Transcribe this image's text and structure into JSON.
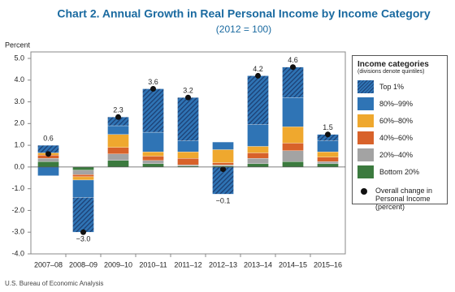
{
  "chart_data": {
    "type": "stacked-bar",
    "title": "Chart 2. Annual Growth in Real Personal Income by Income Category",
    "subtitle": "(2012 = 100)",
    "y_label": "Percent",
    "source": "U.S. Bureau of Economic Analysis",
    "legend_title": "Income categories",
    "legend_subtitle": "(divisions denote quintiles)",
    "categories": [
      "2007–08",
      "2008–09",
      "2009–10",
      "2010–11",
      "2011–12",
      "2012–13",
      "2013–14",
      "2014–15",
      "2015–16"
    ],
    "series": [
      {
        "name": "Bottom 20%",
        "color": "#3b7a3e",
        "values": [
          0.25,
          -0.15,
          0.3,
          0.15,
          0.05,
          0.05,
          0.15,
          0.25,
          0.15
        ]
      },
      {
        "name": "20%–40%",
        "color": "#a3a3a3",
        "values": [
          0.15,
          -0.2,
          0.3,
          0.15,
          0.05,
          0.05,
          0.25,
          0.5,
          0.1
        ]
      },
      {
        "name": "40%–60%",
        "color": "#d8622a",
        "values": [
          0.15,
          -0.1,
          0.3,
          0.2,
          0.3,
          0.1,
          0.25,
          0.35,
          0.2
        ]
      },
      {
        "name": "60%–80%",
        "color": "#efa82e",
        "values": [
          0.1,
          -0.15,
          0.6,
          0.2,
          0.3,
          0.6,
          0.3,
          0.75,
          0.25
        ]
      },
      {
        "name": "80%–99%",
        "color": "#2f74b5",
        "values": [
          -0.4,
          -0.8,
          0.4,
          0.9,
          0.5,
          0.35,
          1.0,
          1.35,
          0.5
        ]
      },
      {
        "name": "Top 1%",
        "color": "#2f74b5",
        "pattern": "hatch",
        "values": [
          0.35,
          -1.6,
          0.4,
          2.0,
          2.0,
          -1.25,
          2.25,
          1.4,
          0.3
        ]
      }
    ],
    "total": {
      "name": "Overall change in Personal Income (percent)",
      "color": "#111111",
      "values": [
        0.6,
        -3.0,
        2.3,
        3.6,
        3.2,
        -0.1,
        4.2,
        4.6,
        1.5
      ],
      "value_labels": [
        "0.6",
        "−3.0",
        "2.3",
        "3.6",
        "3.2",
        "−0.1",
        "4.2",
        "4.6",
        "1.5"
      ]
    },
    "ylim": [
      -4,
      5
    ],
    "yticks": [
      {
        "value": -4,
        "label": "-4.0"
      },
      {
        "value": -3,
        "label": "-3.0"
      },
      {
        "value": -2,
        "label": "-2.0"
      },
      {
        "value": -1,
        "label": "-1.0"
      },
      {
        "value": 0,
        "label": "0.0"
      },
      {
        "value": 1,
        "label": "1.0"
      },
      {
        "value": 2,
        "label": "2.0"
      },
      {
        "value": 3,
        "label": "3.0"
      },
      {
        "value": 4,
        "label": "4.0"
      },
      {
        "value": 5,
        "label": "5.0"
      }
    ],
    "grid": false
  }
}
